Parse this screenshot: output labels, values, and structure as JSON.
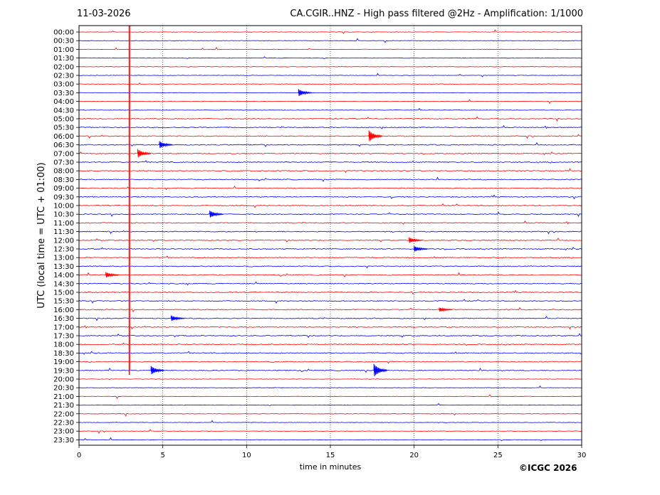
{
  "header": {
    "date": "11-03-2026",
    "title": "CA.CGIR..HNZ - High pass filtered @2Hz - Amplification: 1/1000"
  },
  "footer": {
    "copyright": "©ICGC 2026"
  },
  "chart_data": {
    "type": "line",
    "title": "CA.CGIR..HNZ - High pass filtered @2Hz - Amplification: 1/1000",
    "xlabel": "time in minutes",
    "ylabel": "UTC (local time = UTC + 01:00)",
    "xlim": [
      0,
      30
    ],
    "x_ticks": [
      "0",
      "5",
      "10",
      "15",
      "20",
      "25",
      "30"
    ],
    "row_labels": [
      "00:00",
      "00:30",
      "01:00",
      "01:30",
      "02:00",
      "02:30",
      "03:00",
      "03:30",
      "04:00",
      "04:30",
      "05:00",
      "05:30",
      "06:00",
      "06:30",
      "07:00",
      "07:30",
      "08:00",
      "08:30",
      "09:00",
      "09:30",
      "10:00",
      "10:30",
      "11:00",
      "11:30",
      "12:00",
      "12:30",
      "13:00",
      "13:30",
      "14:00",
      "14:30",
      "15:00",
      "15:30",
      "16:00",
      "16:30",
      "17:00",
      "17:30",
      "18:00",
      "18:30",
      "19:00",
      "19:30",
      "20:00",
      "20:30",
      "21:00",
      "21:30",
      "22:00",
      "22:30",
      "23:00",
      "23:30"
    ],
    "series_colors": [
      "#ff0000",
      "#0000ff"
    ],
    "grid": "vertical dotted at 5-minute intervals",
    "events": [
      {
        "row": 7,
        "minute": 13.1,
        "amplitude": 5
      },
      {
        "row": 12,
        "minute": 17.3,
        "amplitude": 8
      },
      {
        "row": 13,
        "minute": 4.8,
        "amplitude": 5
      },
      {
        "row": 14,
        "minute": 3.5,
        "amplitude": 6
      },
      {
        "row": 21,
        "minute": 7.8,
        "amplitude": 5
      },
      {
        "row": 24,
        "minute": 19.7,
        "amplitude": 4
      },
      {
        "row": 25,
        "minute": 20.0,
        "amplitude": 4
      },
      {
        "row": 28,
        "minute": 1.6,
        "amplitude": 4
      },
      {
        "row": 32,
        "minute": 21.5,
        "amplitude": 3
      },
      {
        "row": 33,
        "minute": 5.5,
        "amplitude": 4
      },
      {
        "row": 39,
        "minute": 4.3,
        "amplitude": 6
      },
      {
        "row": 39,
        "minute": 17.6,
        "amplitude": 9
      }
    ],
    "spike": {
      "minute": 3.0,
      "from_row": 0,
      "to_row": 40
    }
  }
}
